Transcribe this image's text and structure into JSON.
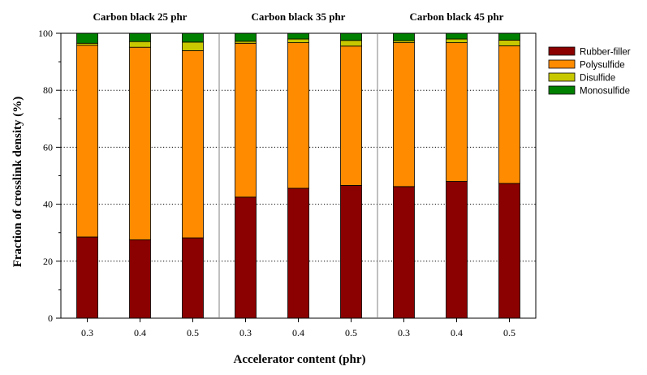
{
  "chart_data": {
    "type": "bar",
    "stacked": true,
    "xlabel": "Accelerator content (phr)",
    "ylabel": "Fraction of crosslink density (%)",
    "ylim": [
      0,
      100
    ],
    "yticks": [
      0,
      20,
      40,
      60,
      80,
      100
    ],
    "grid": "horizontal dotted",
    "legend_position": "top-right outside",
    "groups": [
      {
        "title": "Carbon black 25 phr",
        "categories": [
          "0.3",
          "0.4",
          "0.5"
        ]
      },
      {
        "title": "Carbon black 35 phr",
        "categories": [
          "0.3",
          "0.4",
          "0.5"
        ]
      },
      {
        "title": "Carbon black 45 phr",
        "categories": [
          "0.3",
          "0.4",
          "0.5"
        ]
      }
    ],
    "series": [
      {
        "name": "Rubber-filler",
        "color": "#8b0000",
        "values": [
          28.5,
          27.5,
          28.2,
          42.5,
          45.6,
          46.6,
          46.2,
          48.0,
          47.3
        ]
      },
      {
        "name": "Polysulfide",
        "color": "#ff8c00",
        "values": [
          67.3,
          67.6,
          65.7,
          54.0,
          51.1,
          48.9,
          50.5,
          48.7,
          48.3
        ]
      },
      {
        "name": "Disulfide",
        "color": "#c8c800",
        "values": [
          0.7,
          2.0,
          3.0,
          0.7,
          1.3,
          2.0,
          0.7,
          1.3,
          2.0
        ]
      },
      {
        "name": "Monosulfide",
        "color": "#008000",
        "values": [
          3.5,
          2.9,
          3.1,
          2.8,
          2.0,
          2.5,
          2.6,
          2.0,
          2.4
        ]
      }
    ]
  }
}
